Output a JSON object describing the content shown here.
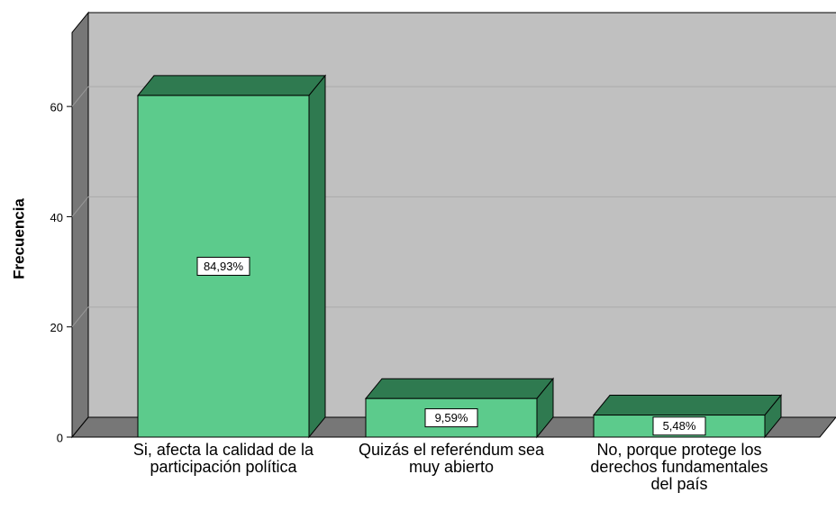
{
  "chart_data": {
    "type": "bar3d",
    "y_label": "Frecuencia",
    "categories": [
      "Si, afecta la calidad de la participación política",
      "Quizás el referéndum sea muy abierto",
      "No, porque protege los derechos fundamentales del país"
    ],
    "values": [
      62,
      7,
      4
    ],
    "percentages": [
      84.93,
      9.59,
      5.48
    ],
    "percentage_labels": [
      "84,93%",
      "9,59%",
      "5,48%"
    ],
    "color": "#5ccb8c",
    "shade_color": "#2f7a50",
    "ylim": [
      0,
      70
    ],
    "yticks": [
      0,
      20,
      40,
      60
    ],
    "grid": true
  }
}
